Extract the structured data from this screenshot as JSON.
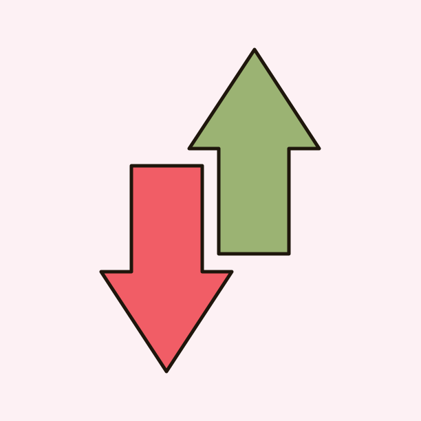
{
  "background_color": "#FDF1F4",
  "icons": {
    "up_arrow": {
      "name": "up-arrow-icon",
      "fill": "#9BB373"
    },
    "down_arrow": {
      "name": "down-arrow-icon",
      "fill": "#F15D66"
    }
  },
  "stroke_color": "#1E160C"
}
